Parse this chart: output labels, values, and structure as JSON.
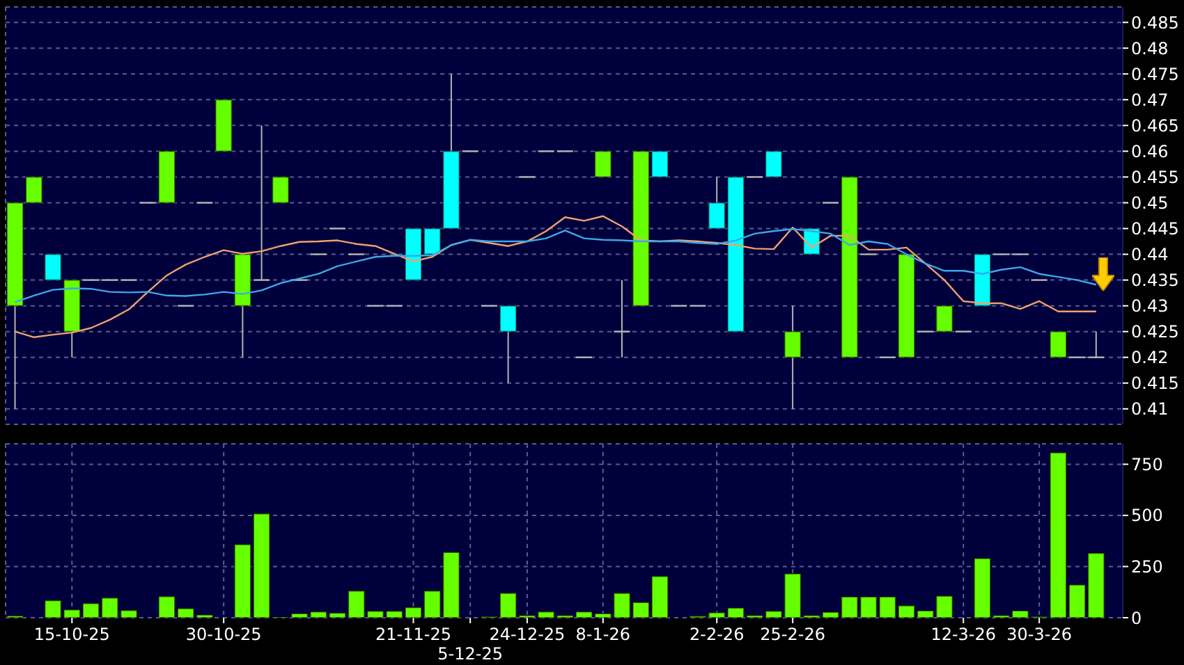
{
  "chart_data": [
    {
      "type": "candlestick",
      "categories": [
        null,
        null,
        null,
        null,
        null,
        null,
        null,
        null,
        null,
        null,
        null,
        null,
        null,
        null,
        null,
        null,
        null,
        null,
        null,
        null,
        null,
        null,
        null,
        null,
        null,
        null,
        null,
        null,
        null,
        null,
        null,
        null,
        null,
        null,
        null,
        null,
        null,
        null,
        null,
        null,
        null,
        null,
        null,
        null,
        null,
        null,
        null,
        null,
        null,
        null,
        null,
        null,
        null,
        null,
        null,
        null,
        null,
        null
      ],
      "ohlc": [
        [
          0.43,
          0.45,
          0.41,
          0.45
        ],
        [
          0.45,
          0.455,
          0.45,
          0.455
        ],
        [
          0.44,
          0.44,
          0.435,
          0.435
        ],
        [
          0.425,
          0.435,
          0.42,
          0.435
        ],
        [
          0.435,
          0.435,
          0.435,
          0.435
        ],
        [
          0.435,
          0.435,
          0.435,
          0.435
        ],
        [
          0.435,
          0.435,
          0.435,
          0.435
        ],
        [
          0.45,
          0.45,
          0.45,
          0.45
        ],
        [
          0.45,
          0.46,
          0.45,
          0.46
        ],
        [
          0.43,
          0.43,
          0.43,
          0.43
        ],
        [
          0.45,
          0.45,
          0.45,
          0.45
        ],
        [
          0.46,
          0.47,
          0.46,
          0.47
        ],
        [
          0.43,
          0.44,
          0.42,
          0.44
        ],
        [
          0.435,
          0.465,
          0.435,
          0.435
        ],
        [
          0.45,
          0.455,
          0.45,
          0.455
        ],
        [
          0.435,
          0.435,
          0.435,
          0.435
        ],
        [
          0.44,
          0.44,
          0.44,
          0.44
        ],
        [
          0.445,
          0.445,
          0.445,
          0.445
        ],
        [
          0.44,
          0.44,
          0.44,
          0.44
        ],
        [
          0.43,
          0.43,
          0.43,
          0.43
        ],
        [
          0.43,
          0.43,
          0.43,
          0.43
        ],
        [
          0.445,
          0.445,
          0.435,
          0.435
        ],
        [
          0.445,
          0.445,
          0.44,
          0.44
        ],
        [
          0.46,
          0.475,
          0.445,
          0.445
        ],
        [
          0.46,
          0.46,
          0.46,
          0.46
        ],
        [
          0.43,
          0.43,
          0.43,
          0.43
        ],
        [
          0.43,
          0.43,
          0.415,
          0.425
        ],
        [
          0.455,
          0.455,
          0.455,
          0.455
        ],
        [
          0.46,
          0.46,
          0.46,
          0.46
        ],
        [
          0.46,
          0.46,
          0.46,
          0.46
        ],
        [
          0.42,
          0.42,
          0.42,
          0.42
        ],
        [
          0.455,
          0.46,
          0.455,
          0.46
        ],
        [
          0.425,
          0.435,
          0.42,
          0.425
        ],
        [
          0.43,
          0.46,
          0.43,
          0.46
        ],
        [
          0.46,
          0.46,
          0.455,
          0.455
        ],
        [
          0.43,
          0.43,
          0.43,
          0.43
        ],
        [
          0.43,
          0.43,
          0.43,
          0.43
        ],
        [
          0.45,
          0.455,
          0.445,
          0.445
        ],
        [
          0.455,
          0.455,
          0.425,
          0.425
        ],
        [
          0.455,
          0.455,
          0.455,
          0.455
        ],
        [
          0.46,
          0.46,
          0.455,
          0.455
        ],
        [
          0.42,
          0.43,
          0.41,
          0.425
        ],
        [
          0.445,
          0.445,
          0.44,
          0.44
        ],
        [
          0.45,
          0.45,
          0.45,
          0.45
        ],
        [
          0.42,
          0.455,
          0.42,
          0.455
        ],
        [
          0.44,
          0.44,
          0.44,
          0.44
        ],
        [
          0.42,
          0.42,
          0.42,
          0.42
        ],
        [
          0.42,
          0.44,
          0.42,
          0.44
        ],
        [
          0.425,
          0.425,
          0.425,
          0.425
        ],
        [
          0.425,
          0.43,
          0.425,
          0.43
        ],
        [
          0.425,
          0.425,
          0.425,
          0.425
        ],
        [
          0.44,
          0.44,
          0.43,
          0.43
        ],
        [
          0.44,
          0.44,
          0.44,
          0.44
        ],
        [
          0.44,
          0.44,
          0.44,
          0.44
        ],
        [
          0.435,
          0.435,
          0.435,
          0.435
        ],
        [
          0.42,
          0.425,
          0.42,
          0.425
        ],
        [
          0.42,
          0.42,
          0.42,
          0.42
        ],
        [
          0.42,
          0.425,
          0.42,
          0.42
        ]
      ],
      "colors": [
        "#66ff00",
        "#66ff00",
        "#00ffff",
        "#66ff00",
        "#b4b4b4",
        "#b4b4b4",
        "#b4b4b4",
        "#b4b4b4",
        "#66ff00",
        "#b4b4b4",
        "#b4b4b4",
        "#66ff00",
        "#66ff00",
        "#b4b4b4",
        "#66ff00",
        "#b4b4b4",
        "#b4b4b4",
        "#b4b4b4",
        "#b4b4b4",
        "#b4b4b4",
        "#b4b4b4",
        "#00ffff",
        "#00ffff",
        "#00ffff",
        "#b4b4b4",
        "#b4b4b4",
        "#00ffff",
        "#b4b4b4",
        "#b4b4b4",
        "#b4b4b4",
        "#b4b4b4",
        "#66ff00",
        "#b4b4b4",
        "#66ff00",
        "#00ffff",
        "#b4b4b4",
        "#b4b4b4",
        "#00ffff",
        "#00ffff",
        "#b4b4b4",
        "#00ffff",
        "#66ff00",
        "#00ffff",
        "#b4b4b4",
        "#66ff00",
        "#b4b4b4",
        "#b4b4b4",
        "#66ff00",
        "#b4b4b4",
        "#66ff00",
        "#b4b4b4",
        "#00ffff",
        "#b4b4b4",
        "#b4b4b4",
        "#b4b4b4",
        "#66ff00",
        "#b4b4b4",
        "#b4b4b4"
      ],
      "series": [
        {
          "type": "line",
          "color": "#f0a070",
          "values": [
            0.425,
            0.4239,
            0.4244,
            0.4248,
            0.4257,
            0.4273,
            0.4293,
            0.4327,
            0.4359,
            0.438,
            0.4395,
            0.4408,
            0.4401,
            0.4406,
            0.4416,
            0.4424,
            0.4425,
            0.4427,
            0.442,
            0.4416,
            0.4401,
            0.4386,
            0.4395,
            0.4418,
            0.4428,
            0.4422,
            0.4416,
            0.4425,
            0.4445,
            0.4472,
            0.4465,
            0.4474,
            0.4454,
            0.4427,
            0.4425,
            0.4427,
            0.4425,
            0.4422,
            0.4418,
            0.4411,
            0.441,
            0.4452,
            0.4413,
            0.4436,
            0.4436,
            0.4409,
            0.4409,
            0.4413,
            0.4382,
            0.435,
            0.4309,
            0.4305,
            0.4305,
            0.4294,
            0.4309,
            0.4289,
            0.4289,
            0.4289
          ]
        },
        {
          "type": "line",
          "color": "#3ca8e8",
          "values": [
            0.4307,
            0.432,
            0.4331,
            0.4334,
            0.4333,
            0.4327,
            0.4326,
            0.4327,
            0.432,
            0.4319,
            0.4322,
            0.4327,
            0.4323,
            0.433,
            0.4344,
            0.4353,
            0.4362,
            0.4377,
            0.4386,
            0.4395,
            0.4397,
            0.4397,
            0.4398,
            0.4418,
            0.4428,
            0.4425,
            0.4425,
            0.4425,
            0.4431,
            0.4446,
            0.4431,
            0.4428,
            0.4427,
            0.4425,
            0.4425,
            0.4425,
            0.4422,
            0.442,
            0.4427,
            0.444,
            0.4445,
            0.4449,
            0.4445,
            0.444,
            0.4418,
            0.4425,
            0.442,
            0.44,
            0.4382,
            0.4368,
            0.4368,
            0.4362,
            0.437,
            0.4375,
            0.4362,
            0.4356,
            0.435,
            0.4341
          ]
        }
      ],
      "ylim": [
        0.407,
        0.488
      ],
      "yticks": [
        0.41,
        0.415,
        0.42,
        0.425,
        0.43,
        0.435,
        0.44,
        0.445,
        0.45,
        0.455,
        0.46,
        0.465,
        0.47,
        0.475,
        0.48,
        0.485
      ],
      "grid": true,
      "tick_labels": "y"
    },
    {
      "type": "bar",
      "categories": [
        null,
        null,
        null,
        "15-10-25",
        null,
        null,
        null,
        null,
        null,
        null,
        null,
        "30-10-25",
        null,
        null,
        null,
        null,
        null,
        null,
        null,
        null,
        null,
        "21-11-25",
        null,
        null,
        "5-12-25",
        null,
        null,
        "24-12-25",
        null,
        null,
        null,
        "8-1-26",
        null,
        null,
        null,
        null,
        null,
        "2-2-26",
        null,
        null,
        null,
        "25-2-26",
        null,
        null,
        null,
        null,
        null,
        null,
        null,
        null,
        "12-3-26",
        null,
        null,
        null,
        "30-3-26",
        null,
        null,
        null
      ],
      "values": [
        9,
        0,
        84,
        39,
        70,
        97,
        36,
        0,
        104,
        45,
        14,
        0,
        358,
        508,
        3,
        20,
        29,
        23,
        131,
        32,
        32,
        50,
        131,
        320,
        0,
        5,
        120,
        11,
        29,
        11,
        29,
        20,
        120,
        75,
        202,
        0,
        8,
        25,
        48,
        11,
        32,
        215,
        11,
        27,
        102,
        102,
        102,
        59,
        34,
        106,
        0,
        290,
        11,
        34,
        5,
        807,
        161,
        315
      ],
      "color": "#66ff00",
      "ylim": [
        0,
        850
      ],
      "yticks": [
        0,
        250,
        500,
        750
      ],
      "grid": true
    }
  ]
}
